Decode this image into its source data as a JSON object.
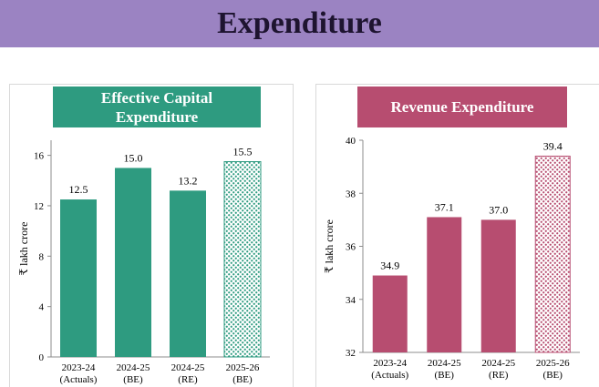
{
  "page": {
    "title": "Expenditure"
  },
  "chart_data": [
    {
      "type": "bar",
      "title_lines": [
        "Effective Capital",
        "Expenditure"
      ],
      "ylabel": "₹ lakh crore",
      "categories": [
        [
          "2023-24",
          "(Actuals)"
        ],
        [
          "2024-25",
          "(BE)"
        ],
        [
          "2024-25",
          "(RE)"
        ],
        [
          "2025-26",
          "(BE)"
        ]
      ],
      "values": [
        12.5,
        15.0,
        13.2,
        15.5
      ],
      "value_labels": [
        "12.5",
        "15.0",
        "13.2",
        "15.5"
      ],
      "yticks": [
        0,
        4,
        8,
        12,
        16
      ],
      "ylim": [
        0,
        17.2
      ],
      "color": "#2e9b80",
      "pattern_last": true,
      "grid": false
    },
    {
      "type": "bar",
      "title_lines": [
        "Revenue Expenditure"
      ],
      "ylabel": "₹ lakh crore",
      "categories": [
        [
          "2023-24",
          "(Actuals)"
        ],
        [
          "2024-25",
          "(BE)"
        ],
        [
          "2024-25",
          "(RE)"
        ],
        [
          "2025-26",
          "(BE)"
        ]
      ],
      "values": [
        34.9,
        37.1,
        37.0,
        39.4
      ],
      "value_labels": [
        "34.9",
        "37.1",
        "37.0",
        "39.4"
      ],
      "yticks": [
        32,
        34,
        36,
        38,
        40
      ],
      "ylim": [
        32,
        40
      ],
      "color": "#b74d70",
      "pattern_last": true,
      "grid": false
    }
  ]
}
